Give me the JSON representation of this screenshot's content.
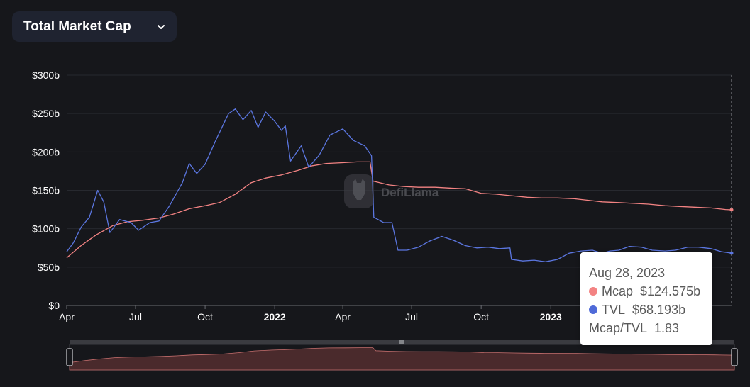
{
  "header": {
    "dropdown_label": "Total Market Cap"
  },
  "tooltip": {
    "date": "Aug 28, 2023",
    "rows": [
      {
        "name": "Mcap",
        "value": "$124.575b",
        "color": "#f38383"
      },
      {
        "name": "TVL",
        "value": "$68.193b",
        "color": "#4f6ad8"
      }
    ],
    "ratio_label": "Mcap/TVL",
    "ratio_value": "1.83"
  },
  "watermark": "DefiLlama",
  "colors": {
    "mcap": "#f38383",
    "tvl": "#5b76e0",
    "background": "#16171b",
    "grid": "#27292f"
  },
  "chart_data": {
    "type": "line",
    "x_axis": {
      "ticks": [
        {
          "label": "Apr",
          "date": "2021-04-01",
          "bold": false
        },
        {
          "label": "Jul",
          "date": "2021-07-01",
          "bold": false
        },
        {
          "label": "Oct",
          "date": "2021-10-01",
          "bold": false
        },
        {
          "label": "2022",
          "date": "2022-01-01",
          "bold": true
        },
        {
          "label": "Apr",
          "date": "2022-04-01",
          "bold": false
        },
        {
          "label": "Jul",
          "date": "2022-07-01",
          "bold": false
        },
        {
          "label": "Oct",
          "date": "2022-10-01",
          "bold": false
        },
        {
          "label": "2023",
          "date": "2023-01-01",
          "bold": true
        }
      ],
      "range": [
        "2021-04-01",
        "2023-08-28"
      ]
    },
    "y_axis": {
      "ticks": [
        "$0",
        "$50b",
        "$100b",
        "$150b",
        "$200b",
        "$250b",
        "$300b"
      ],
      "range": [
        0,
        300
      ],
      "unit": "billions USD"
    },
    "grid": true,
    "legend": "none",
    "series": [
      {
        "name": "Mcap",
        "color": "#f38383",
        "points": [
          [
            "2021-04-01",
            62
          ],
          [
            "2021-04-20",
            78
          ],
          [
            "2021-05-10",
            92
          ],
          [
            "2021-06-01",
            104
          ],
          [
            "2021-06-20",
            109
          ],
          [
            "2021-07-10",
            111
          ],
          [
            "2021-08-01",
            114
          ],
          [
            "2021-08-20",
            119
          ],
          [
            "2021-09-10",
            126
          ],
          [
            "2021-10-01",
            130
          ],
          [
            "2021-10-20",
            134
          ],
          [
            "2021-11-10",
            145
          ],
          [
            "2021-12-01",
            160
          ],
          [
            "2021-12-20",
            166
          ],
          [
            "2022-01-10",
            170
          ],
          [
            "2022-02-01",
            176
          ],
          [
            "2022-02-20",
            182
          ],
          [
            "2022-03-10",
            185
          ],
          [
            "2022-04-01",
            186
          ],
          [
            "2022-04-20",
            187
          ],
          [
            "2022-05-07",
            187
          ],
          [
            "2022-05-11",
            162
          ],
          [
            "2022-06-01",
            157
          ],
          [
            "2022-06-20",
            155
          ],
          [
            "2022-07-10",
            154
          ],
          [
            "2022-08-01",
            154
          ],
          [
            "2022-08-20",
            153
          ],
          [
            "2022-09-10",
            152
          ],
          [
            "2022-10-01",
            146
          ],
          [
            "2022-10-20",
            145
          ],
          [
            "2022-11-10",
            143
          ],
          [
            "2022-12-01",
            141
          ],
          [
            "2022-12-20",
            140
          ],
          [
            "2023-01-10",
            140
          ],
          [
            "2023-02-01",
            139
          ],
          [
            "2023-02-20",
            137
          ],
          [
            "2023-03-10",
            135
          ],
          [
            "2023-04-01",
            134
          ],
          [
            "2023-04-20",
            133
          ],
          [
            "2023-05-10",
            132
          ],
          [
            "2023-06-01",
            130
          ],
          [
            "2023-06-20",
            129
          ],
          [
            "2023-07-10",
            128
          ],
          [
            "2023-08-01",
            127
          ],
          [
            "2023-08-20",
            125
          ],
          [
            "2023-08-28",
            124.575
          ]
        ]
      },
      {
        "name": "TVL",
        "color": "#5b76e0",
        "points": [
          [
            "2021-04-01",
            70
          ],
          [
            "2021-04-10",
            82
          ],
          [
            "2021-04-20",
            102
          ],
          [
            "2021-05-01",
            115
          ],
          [
            "2021-05-12",
            150
          ],
          [
            "2021-05-20",
            135
          ],
          [
            "2021-05-28",
            95
          ],
          [
            "2021-06-10",
            112
          ],
          [
            "2021-06-25",
            108
          ],
          [
            "2021-07-05",
            98
          ],
          [
            "2021-07-20",
            108
          ],
          [
            "2021-08-01",
            110
          ],
          [
            "2021-08-15",
            130
          ],
          [
            "2021-09-01",
            160
          ],
          [
            "2021-09-10",
            185
          ],
          [
            "2021-09-20",
            172
          ],
          [
            "2021-10-01",
            184
          ],
          [
            "2021-10-15",
            215
          ],
          [
            "2021-11-01",
            250
          ],
          [
            "2021-11-10",
            256
          ],
          [
            "2021-11-20",
            242
          ],
          [
            "2021-12-01",
            254
          ],
          [
            "2021-12-10",
            232
          ],
          [
            "2021-12-20",
            252
          ],
          [
            "2022-01-01",
            240
          ],
          [
            "2022-01-10",
            228
          ],
          [
            "2022-01-15",
            234
          ],
          [
            "2022-01-22",
            188
          ],
          [
            "2022-02-05",
            208
          ],
          [
            "2022-02-15",
            180
          ],
          [
            "2022-03-01",
            196
          ],
          [
            "2022-03-15",
            222
          ],
          [
            "2022-04-01",
            230
          ],
          [
            "2022-04-15",
            215
          ],
          [
            "2022-04-30",
            208
          ],
          [
            "2022-05-09",
            195
          ],
          [
            "2022-05-12",
            115
          ],
          [
            "2022-05-25",
            108
          ],
          [
            "2022-06-05",
            108
          ],
          [
            "2022-06-13",
            72
          ],
          [
            "2022-06-25",
            72
          ],
          [
            "2022-07-10",
            76
          ],
          [
            "2022-07-25",
            84
          ],
          [
            "2022-08-10",
            90
          ],
          [
            "2022-08-25",
            85
          ],
          [
            "2022-09-10",
            78
          ],
          [
            "2022-09-25",
            75
          ],
          [
            "2022-10-10",
            76
          ],
          [
            "2022-10-25",
            74
          ],
          [
            "2022-11-08",
            75
          ],
          [
            "2022-11-10",
            60
          ],
          [
            "2022-11-25",
            58
          ],
          [
            "2022-12-10",
            59
          ],
          [
            "2022-12-25",
            57
          ],
          [
            "2023-01-10",
            60
          ],
          [
            "2023-01-25",
            68
          ],
          [
            "2023-02-10",
            71
          ],
          [
            "2023-02-25",
            72
          ],
          [
            "2023-03-10",
            68
          ],
          [
            "2023-03-20",
            71
          ],
          [
            "2023-04-01",
            72
          ],
          [
            "2023-04-15",
            77
          ],
          [
            "2023-05-01",
            76
          ],
          [
            "2023-05-15",
            72
          ],
          [
            "2023-06-01",
            71
          ],
          [
            "2023-06-15",
            72
          ],
          [
            "2023-07-01",
            76
          ],
          [
            "2023-07-15",
            76
          ],
          [
            "2023-08-01",
            74
          ],
          [
            "2023-08-15",
            70
          ],
          [
            "2023-08-28",
            68.193
          ]
        ]
      }
    ]
  }
}
